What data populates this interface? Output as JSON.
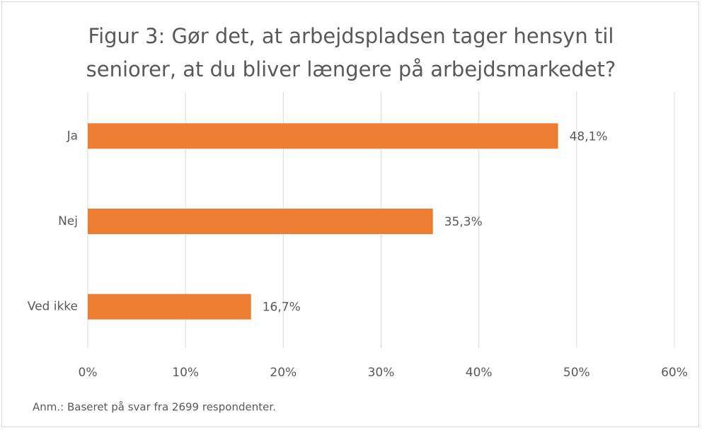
{
  "chart_data": {
    "type": "bar",
    "orientation": "horizontal",
    "title": "Figur 3: Gør det, at arbejdspladsen tager hensyn til seniorer, at du bliver længere på arbejdsmarkedet?",
    "categories": [
      "Ja",
      "Nej",
      "Ved ikke"
    ],
    "values": [
      48.1,
      35.3,
      16.7
    ],
    "value_labels": [
      "48,1%",
      "35,3%",
      "16,7%"
    ],
    "color": "#ed7d31",
    "xlim": [
      0,
      60
    ],
    "xticks": [
      {
        "value": 0,
        "label": "0%"
      },
      {
        "value": 10,
        "label": "10%"
      },
      {
        "value": 20,
        "label": "20%"
      },
      {
        "value": 30,
        "label": "30%"
      },
      {
        "value": 40,
        "label": "40%"
      },
      {
        "value": 50,
        "label": "50%"
      },
      {
        "value": 60,
        "label": "60%"
      }
    ],
    "grid": true,
    "note": "Anm.: Baseret på svar fra 2699 respondenter."
  }
}
